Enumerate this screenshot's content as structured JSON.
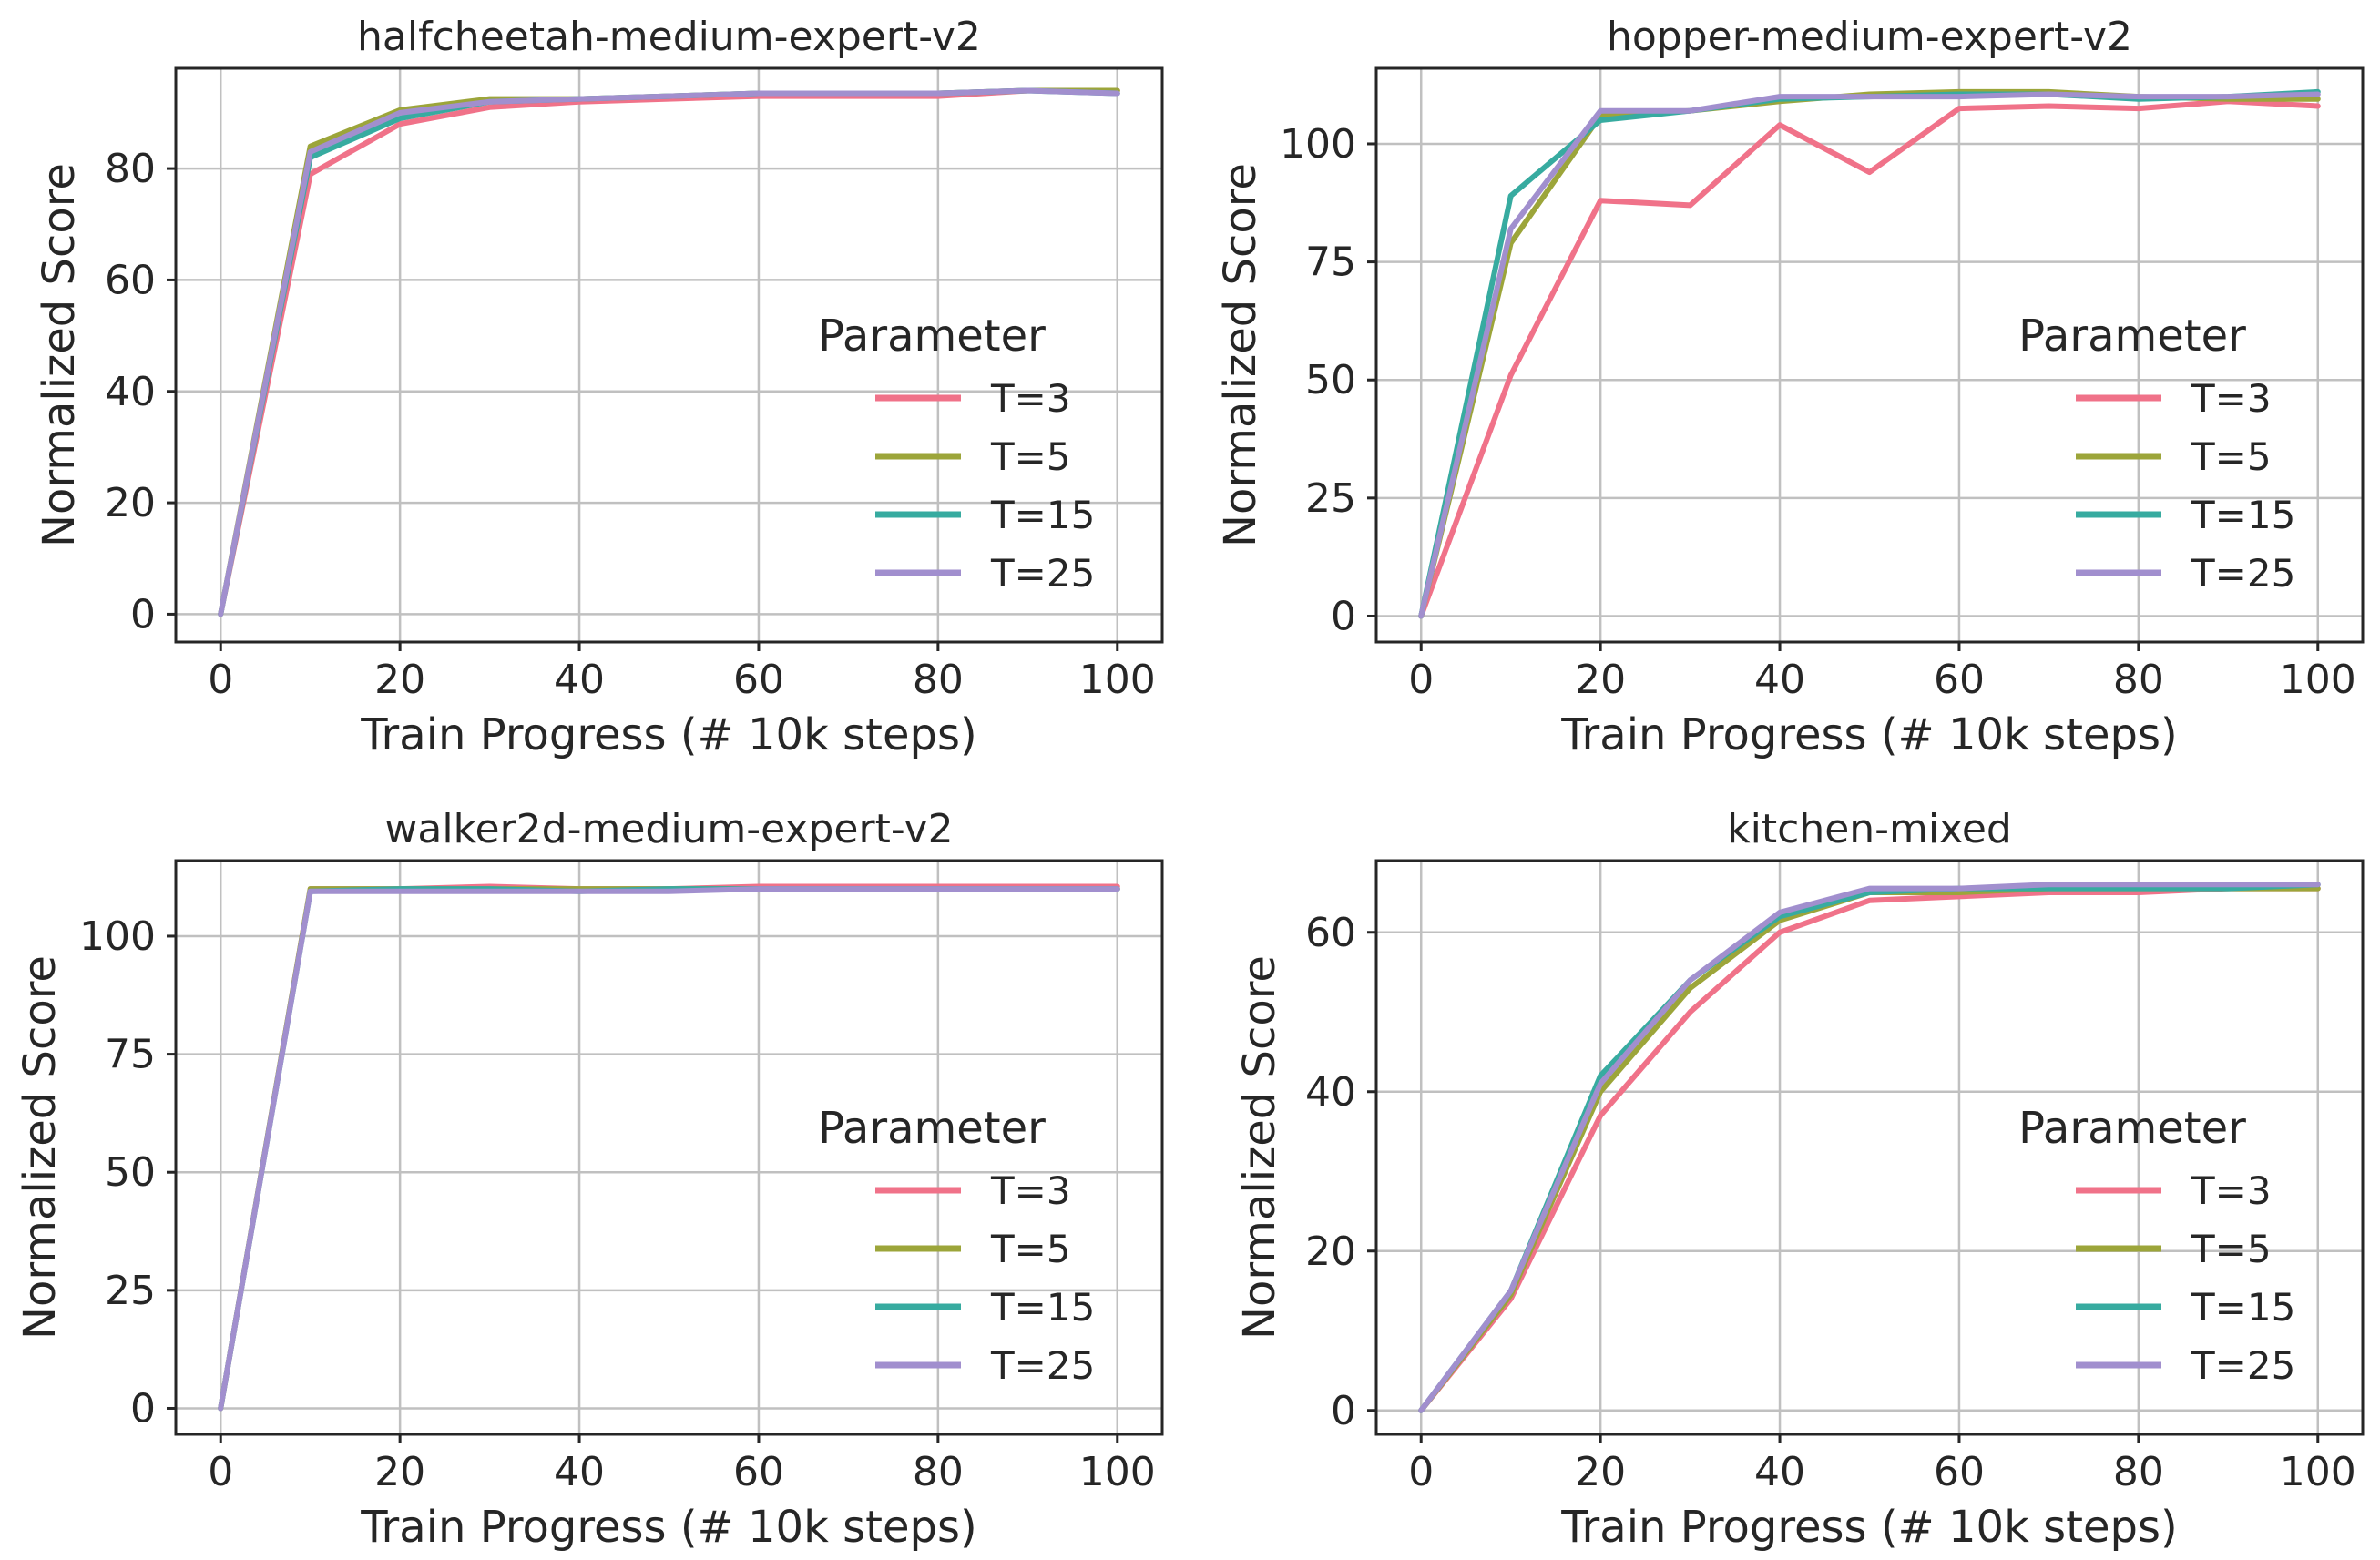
{
  "colors": {
    "T=3": "#f07289",
    "T=5": "#9ca53a",
    "T=15": "#37aba0",
    "T=25": "#a18fce"
  },
  "chart_data": [
    {
      "type": "line",
      "title": "halfcheetah-medium-expert-v2",
      "xlabel": "Train Progress (# 10k steps)",
      "ylabel": "Normalized Score",
      "xlim": [
        -5,
        105
      ],
      "ylim": [
        -5,
        98
      ],
      "xticks": [
        0,
        20,
        40,
        60,
        80,
        100
      ],
      "yticks": [
        0,
        20,
        40,
        60,
        80
      ],
      "grid": true,
      "legend": {
        "title": "Parameter",
        "position": "center-right"
      },
      "x": [
        0,
        10,
        20,
        30,
        40,
        50,
        60,
        70,
        80,
        90,
        100
      ],
      "series": [
        {
          "name": "T=3",
          "values": [
            0,
            79,
            88,
            91,
            92,
            92.5,
            93,
            93,
            93,
            94,
            94
          ]
        },
        {
          "name": "T=5",
          "values": [
            0,
            84,
            90.5,
            92.5,
            92.5,
            93,
            93.5,
            93.5,
            93.5,
            94,
            94
          ]
        },
        {
          "name": "T=15",
          "values": [
            0,
            82,
            89,
            92,
            92.5,
            93,
            93.5,
            93.5,
            93.5,
            94,
            93.5
          ]
        },
        {
          "name": "T=25",
          "values": [
            0,
            83,
            90,
            92,
            92.5,
            93,
            93.5,
            93.5,
            93.5,
            94,
            93.5
          ]
        }
      ]
    },
    {
      "type": "line",
      "title": "hopper-medium-expert-v2",
      "xlabel": "Train Progress (# 10k steps)",
      "ylabel": "Normalized Score",
      "xlim": [
        -5,
        105
      ],
      "ylim": [
        -5.5,
        116
      ],
      "xticks": [
        0,
        20,
        40,
        60,
        80,
        100
      ],
      "yticks": [
        0,
        25,
        50,
        75,
        100
      ],
      "grid": true,
      "legend": {
        "title": "Parameter",
        "position": "center-right"
      },
      "x": [
        0,
        10,
        20,
        30,
        40,
        50,
        60,
        70,
        80,
        90,
        100
      ],
      "series": [
        {
          "name": "T=3",
          "values": [
            0,
            51,
            88,
            87,
            104,
            94,
            107.5,
            108,
            107.5,
            109,
            108
          ]
        },
        {
          "name": "T=5",
          "values": [
            0,
            79,
            106,
            107,
            109,
            110.5,
            111,
            111,
            110,
            109.5,
            109.5
          ]
        },
        {
          "name": "T=15",
          "values": [
            0,
            89,
            105,
            107,
            109.5,
            110,
            110.5,
            110.5,
            109.5,
            110,
            111
          ]
        },
        {
          "name": "T=25",
          "values": [
            0,
            82,
            107,
            107,
            110,
            110,
            110,
            110.5,
            110,
            110,
            110.5
          ]
        }
      ]
    },
    {
      "type": "line",
      "title": "walker2d-medium-expert-v2",
      "xlabel": "Train Progress (# 10k steps)",
      "ylabel": "Normalized Score",
      "xlim": [
        -5,
        105
      ],
      "ylim": [
        -5.5,
        116
      ],
      "xticks": [
        0,
        20,
        40,
        60,
        80,
        100
      ],
      "yticks": [
        0,
        25,
        50,
        75,
        100
      ],
      "grid": true,
      "legend": {
        "title": "Parameter",
        "position": "center-right"
      },
      "x": [
        0,
        10,
        20,
        30,
        40,
        50,
        60,
        70,
        80,
        90,
        100
      ],
      "series": [
        {
          "name": "T=3",
          "values": [
            0,
            110,
            110,
            110.5,
            110,
            110,
            110.5,
            110.5,
            110.5,
            110.5,
            110.5
          ]
        },
        {
          "name": "T=5",
          "values": [
            0,
            110,
            110,
            110,
            110,
            110,
            110,
            110,
            110,
            110,
            110
          ]
        },
        {
          "name": "T=15",
          "values": [
            0,
            109.5,
            110,
            110,
            109.5,
            110,
            110,
            110,
            110,
            110,
            110
          ]
        },
        {
          "name": "T=25",
          "values": [
            0,
            109.5,
            109.5,
            109.5,
            109.5,
            109.5,
            110,
            110,
            110,
            110,
            110
          ]
        }
      ]
    },
    {
      "type": "line",
      "title": "kitchen-mixed",
      "xlabel": "Train Progress (# 10k steps)",
      "ylabel": "Normalized Score",
      "xlim": [
        -5,
        105
      ],
      "ylim": [
        -3,
        69
      ],
      "xticks": [
        0,
        20,
        40,
        60,
        80,
        100
      ],
      "yticks": [
        0,
        20,
        40,
        60
      ],
      "grid": true,
      "legend": {
        "title": "Parameter",
        "position": "center-right"
      },
      "x": [
        0,
        10,
        20,
        30,
        40,
        50,
        60,
        70,
        80,
        90,
        100
      ],
      "series": [
        {
          "name": "T=3",
          "values": [
            0,
            14,
            37,
            50,
            60,
            64,
            64.5,
            65,
            65,
            65.5,
            65.5
          ]
        },
        {
          "name": "T=5",
          "values": [
            0,
            14.5,
            40,
            53,
            61.5,
            65,
            65,
            65.5,
            65.5,
            65.5,
            65.5
          ]
        },
        {
          "name": "T=15",
          "values": [
            0,
            15,
            42,
            54,
            62,
            65,
            65.5,
            65.5,
            65.5,
            65.5,
            66
          ]
        },
        {
          "name": "T=25",
          "values": [
            0,
            15,
            41,
            54,
            62.5,
            65.5,
            65.5,
            66,
            66,
            66,
            66
          ]
        }
      ]
    }
  ]
}
